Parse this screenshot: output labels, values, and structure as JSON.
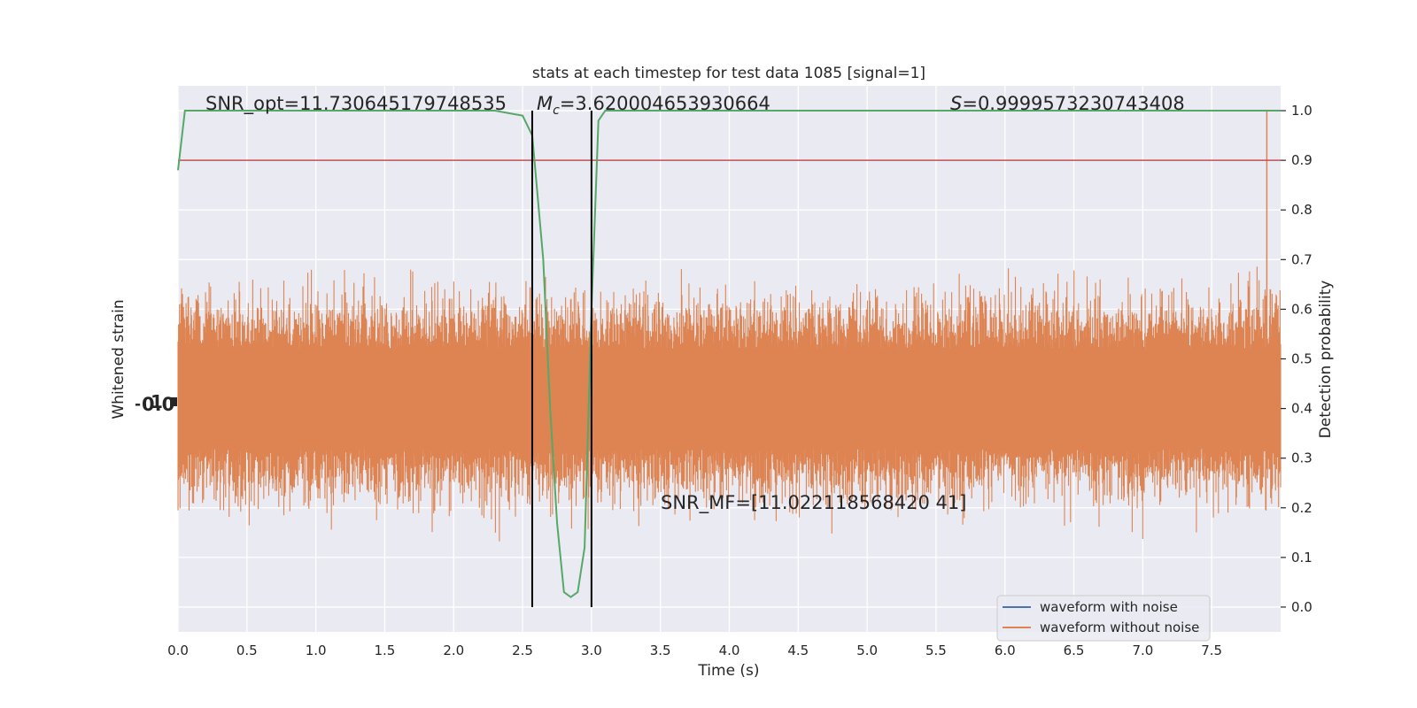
{
  "chart_data": {
    "type": "line",
    "title": "stats at each timestep for test data 1085 [signal=1]",
    "xlabel": "Time (s)",
    "ylabel_left": "Whitened strain",
    "ylabel_right": "Detection probability",
    "xlim": [
      0,
      8
    ],
    "ylim_right": [
      -0.05,
      1.05
    ],
    "x_ticks": [
      "0.0",
      "0.5",
      "1.0",
      "1.5",
      "2.0",
      "2.5",
      "3.0",
      "3.5",
      "4.0",
      "4.5",
      "5.0",
      "5.5",
      "6.0",
      "6.5",
      "7.0",
      "7.5"
    ],
    "y_ticks_right": [
      "0.0",
      "0.1",
      "0.2",
      "0.3",
      "0.4",
      "0.5",
      "0.6",
      "0.7",
      "0.8",
      "0.9",
      "1.0"
    ],
    "grid": true,
    "legend": {
      "placement": "lower right",
      "entries": [
        {
          "label": "waveform with noise",
          "color": "#4c72b0"
        },
        {
          "label": "waveform without noise",
          "color": "#dd8452"
        }
      ]
    },
    "annotations": {
      "snr_opt": "SNR_opt=11.730645179748535",
      "mc_symbol": "M",
      "mc_sub": "c",
      "mc_value": "=3.620004653930664",
      "s_symbol": "S",
      "s_value": "=0.9999573230743408",
      "snr_mf": "SNR_MF=[11.022118568420 41]"
    },
    "threshold": 0.9,
    "vertical_lines_x": [
      2.57,
      3.0
    ],
    "strain_envelope": {
      "center_prob": 0.42,
      "core_halfwidth_prob": 0.1,
      "noise_sigma_prob": 0.09,
      "peak_x": 7.9,
      "peak_value_prob": 1.0
    },
    "series": [
      {
        "name": "detection probability",
        "color": "#55a868",
        "x": [
          0.0,
          0.05,
          0.1,
          0.3,
          0.5,
          1.0,
          1.5,
          2.0,
          2.3,
          2.4,
          2.5,
          2.57,
          2.65,
          2.7,
          2.75,
          2.8,
          2.85,
          2.9,
          2.95,
          3.0,
          3.05,
          3.1,
          3.2,
          3.5,
          4.0,
          5.0,
          6.0,
          7.0,
          7.5,
          8.0
        ],
        "values": [
          0.88,
          1.0,
          1.0,
          1.0,
          1.0,
          1.0,
          1.0,
          1.0,
          1.0,
          0.995,
          0.99,
          0.95,
          0.7,
          0.4,
          0.17,
          0.03,
          0.02,
          0.03,
          0.12,
          0.6,
          0.98,
          1.0,
          1.0,
          1.0,
          1.0,
          1.0,
          1.0,
          1.0,
          1.0,
          1.0
        ]
      }
    ]
  }
}
